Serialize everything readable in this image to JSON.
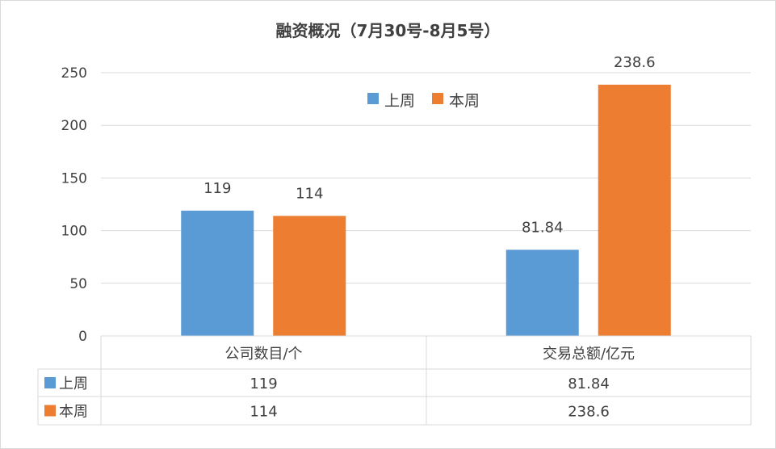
{
  "chart_data": {
    "type": "bar",
    "title": "融资概况（7月30号-8月5号）",
    "categories": [
      "公司数目/个",
      "交易总额/亿元"
    ],
    "series": [
      {
        "name": "上周",
        "values": [
          119,
          81.84
        ],
        "labels": [
          "119",
          "81.84"
        ],
        "color": "#5b9bd5"
      },
      {
        "name": "本周",
        "values": [
          114,
          238.6
        ],
        "labels": [
          "114",
          "238.6"
        ],
        "color": "#ed7d31"
      }
    ],
    "ylim": [
      0,
      250
    ],
    "yticks": [
      0,
      50,
      100,
      150,
      200,
      250
    ],
    "grid": true,
    "legend": "top-right",
    "data_table": true
  }
}
